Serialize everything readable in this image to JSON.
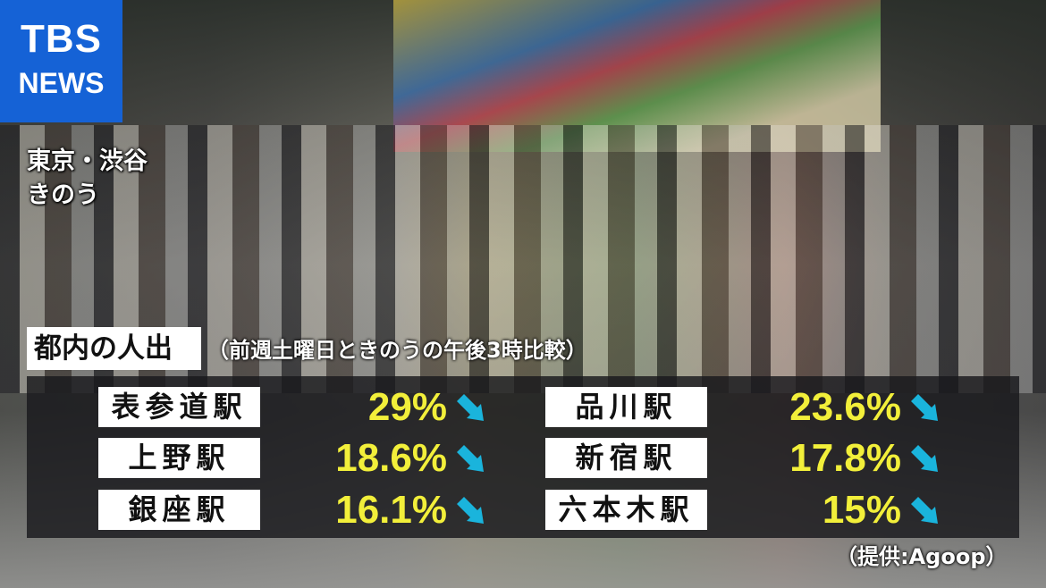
{
  "logo": {
    "line1": "TBS",
    "line2": "NEWS",
    "color": "#1562d6"
  },
  "location": {
    "place": "東京・渋谷",
    "when": "きのう"
  },
  "graphic": {
    "title": "都内の人出",
    "subtitle": "（前週土曜日ときのうの午後3時比較）",
    "trend_icon": "arrow-down-right-icon",
    "value_color": "#f2ef3a",
    "arrow_color": "#1ab4dc",
    "stations": [
      {
        "name": "表参道駅",
        "change": "29%"
      },
      {
        "name": "品川駅",
        "change": "23.6%"
      },
      {
        "name": "上野駅",
        "change": "18.6%"
      },
      {
        "name": "新宿駅",
        "change": "17.8%"
      },
      {
        "name": "銀座駅",
        "change": "16.1%"
      },
      {
        "name": "六本木駅",
        "change": "15%"
      }
    ],
    "credit": "（提供:Agoop）"
  }
}
